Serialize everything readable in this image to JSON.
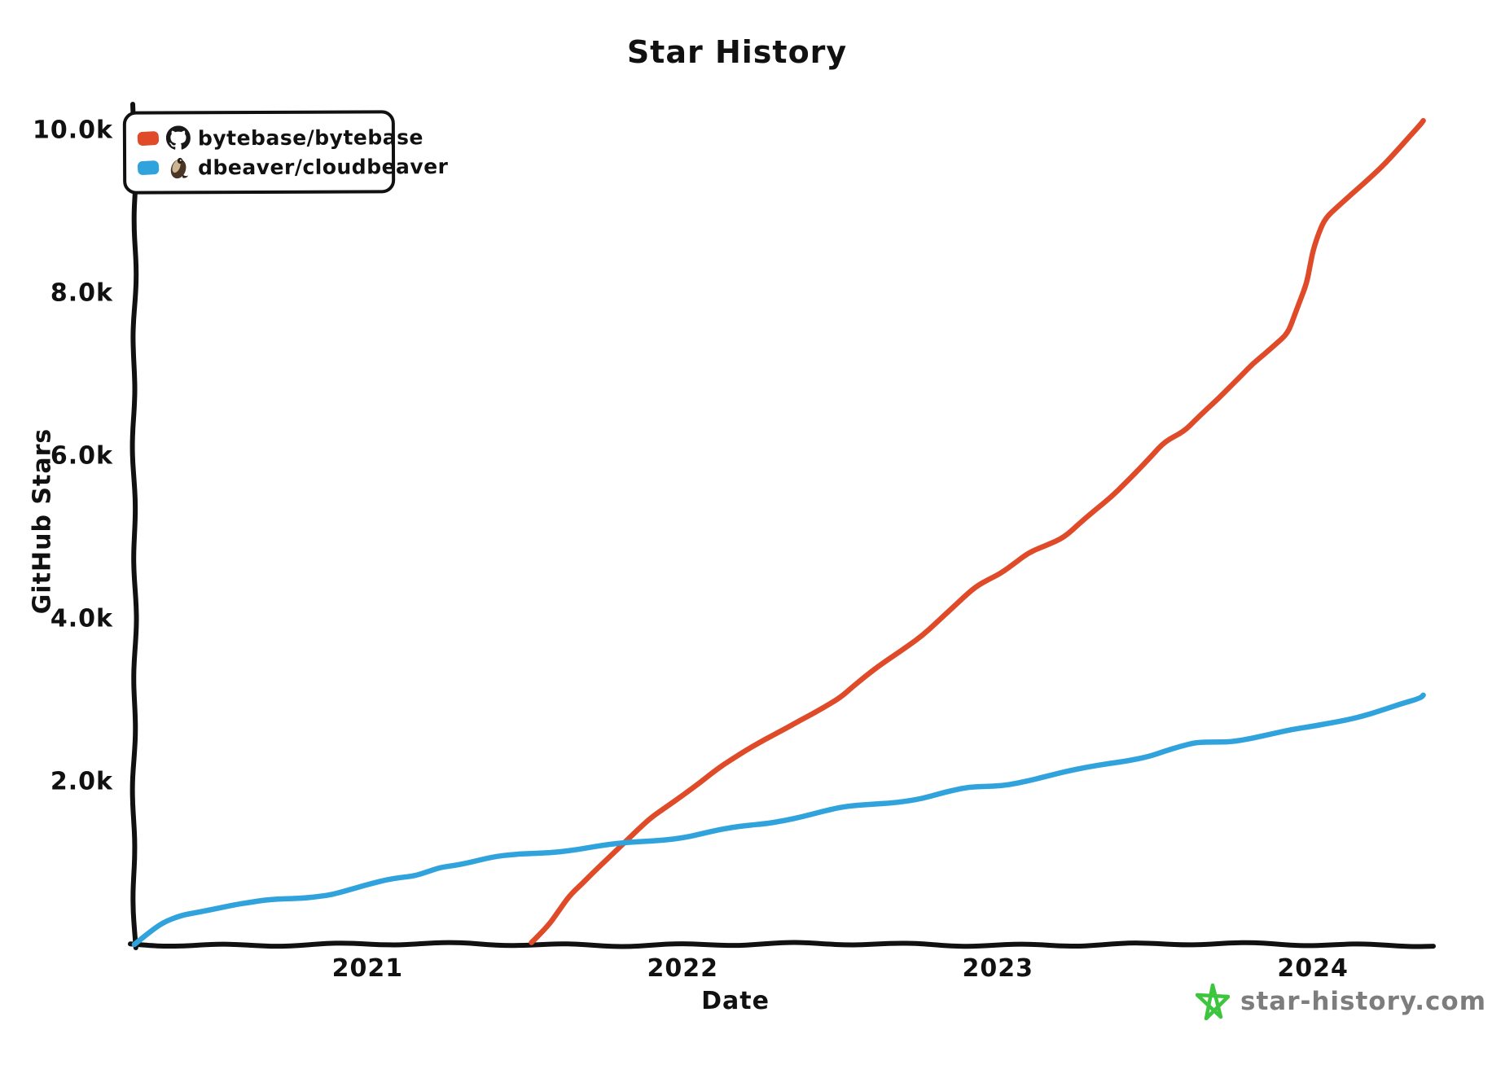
{
  "title": "Star History",
  "watermark": {
    "label": "star-history.com",
    "star_color": "#3dc53d",
    "text_color": "#7d7d7d"
  },
  "colors": {
    "axis": "#111111",
    "bytebase_red": "#df4a28",
    "cloudbeaver_blue": "#30a3dc",
    "background": "#ffffff"
  },
  "legend": {
    "items": [
      {
        "label": "bytebase/bytebase",
        "color": "#df4a28",
        "icon": "github-octocat-avatar"
      },
      {
        "label": "dbeaver/cloudbeaver",
        "color": "#30a3dc",
        "icon": "beaver-avatar"
      }
    ]
  },
  "chart_data": {
    "type": "line",
    "title": "Star History",
    "xlabel": "Date",
    "ylabel": "GitHub Stars",
    "xlim": [
      2020.26,
      2024.382
    ],
    "ylim": [
      0,
      10300
    ],
    "grid": false,
    "legend_position": "top-left",
    "x_ticks": [
      {
        "label": "2021",
        "x": 2021
      },
      {
        "label": "2022",
        "x": 2022
      },
      {
        "label": "2023",
        "x": 2023
      },
      {
        "label": "2024",
        "x": 2024
      }
    ],
    "y_ticks": [
      {
        "label": "2.0k",
        "y": 2000
      },
      {
        "label": "4.0k",
        "y": 4000
      },
      {
        "label": "6.0k",
        "y": 6000
      },
      {
        "label": "8.0k",
        "y": 8000
      },
      {
        "label": "10.0k",
        "y": 10000
      }
    ],
    "series": [
      {
        "name": "bytebase/bytebase",
        "color": "#df4a28",
        "points": [
          [
            2021.52,
            0
          ],
          [
            2021.57,
            200
          ],
          [
            2021.64,
            600
          ],
          [
            2021.72,
            900
          ],
          [
            2021.82,
            1250
          ],
          [
            2021.9,
            1550
          ],
          [
            2022.0,
            1850
          ],
          [
            2022.11,
            2170
          ],
          [
            2022.24,
            2470
          ],
          [
            2022.37,
            2770
          ],
          [
            2022.5,
            3030
          ],
          [
            2022.62,
            3400
          ],
          [
            2022.76,
            3800
          ],
          [
            2022.93,
            4370
          ],
          [
            2023.01,
            4550
          ],
          [
            2023.1,
            4830
          ],
          [
            2023.21,
            5000
          ],
          [
            2023.36,
            5500
          ],
          [
            2023.53,
            6200
          ],
          [
            2023.59,
            6300
          ],
          [
            2023.7,
            6700
          ],
          [
            2023.81,
            7150
          ],
          [
            2023.92,
            7500
          ],
          [
            2023.94,
            7700
          ],
          [
            2023.98,
            8100
          ],
          [
            2024.0,
            8500
          ],
          [
            2024.02,
            8730
          ],
          [
            2024.04,
            8900
          ],
          [
            2024.12,
            9200
          ],
          [
            2024.23,
            9600
          ],
          [
            2024.34,
            10050
          ],
          [
            2024.35,
            10100
          ]
        ]
      },
      {
        "name": "dbeaver/cloudbeaver",
        "color": "#30a3dc",
        "points": [
          [
            2020.26,
            0
          ],
          [
            2020.3,
            120
          ],
          [
            2020.35,
            260
          ],
          [
            2020.41,
            360
          ],
          [
            2020.5,
            450
          ],
          [
            2020.58,
            510
          ],
          [
            2020.67,
            540
          ],
          [
            2020.76,
            560
          ],
          [
            2020.8,
            575
          ],
          [
            2020.89,
            630
          ],
          [
            2020.97,
            700
          ],
          [
            2021.06,
            770
          ],
          [
            2021.15,
            830
          ],
          [
            2021.23,
            950
          ],
          [
            2021.32,
            1000
          ],
          [
            2021.4,
            1060
          ],
          [
            2021.52,
            1120
          ],
          [
            2021.82,
            1250
          ],
          [
            2022.0,
            1330
          ],
          [
            2022.26,
            1480
          ],
          [
            2022.5,
            1660
          ],
          [
            2022.76,
            1800
          ],
          [
            2022.91,
            1930
          ],
          [
            2023.01,
            1970
          ],
          [
            2023.22,
            2120
          ],
          [
            2023.35,
            2230
          ],
          [
            2023.48,
            2310
          ],
          [
            2023.63,
            2460
          ],
          [
            2023.74,
            2490
          ],
          [
            2023.87,
            2580
          ],
          [
            2024.0,
            2670
          ],
          [
            2024.21,
            2880
          ],
          [
            2024.34,
            3020
          ],
          [
            2024.35,
            3060
          ]
        ]
      }
    ]
  }
}
